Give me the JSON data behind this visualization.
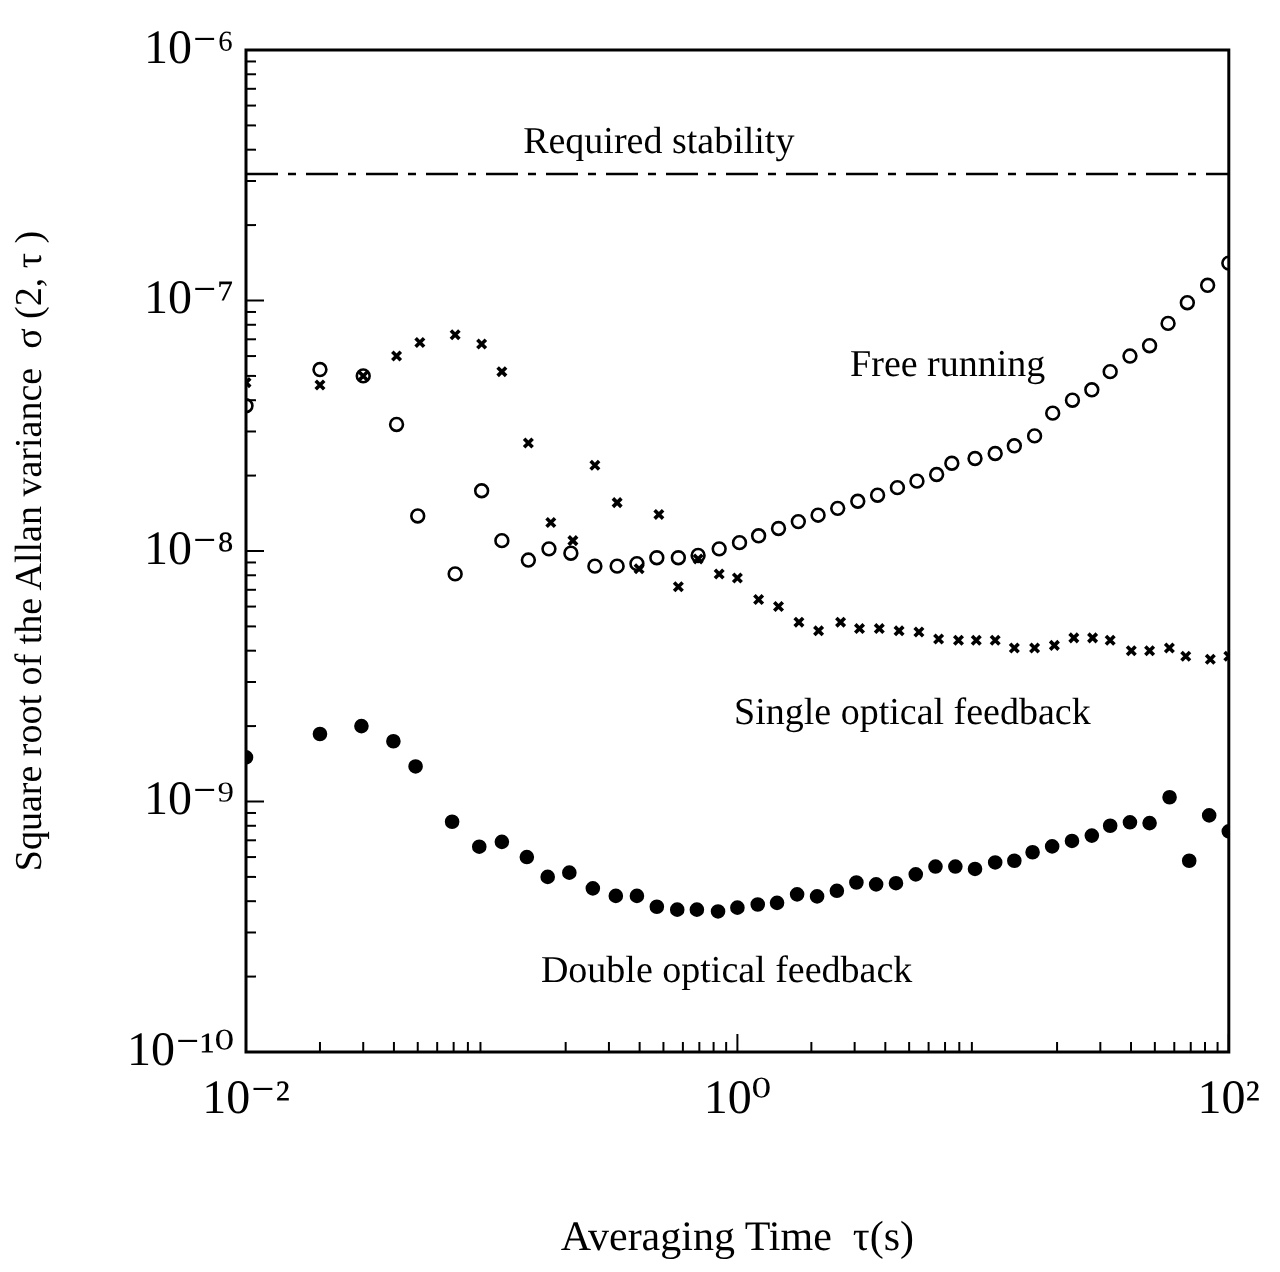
{
  "chart_data": {
    "type": "scatter",
    "xlabel": "Averaging Time  τ(s)",
    "ylabel": "Square root of the Allan variance  σ (2, τ )",
    "log": "xy",
    "legend": false,
    "grid": false,
    "xlim": [
      0.01,
      100
    ],
    "xticks": [
      {
        "value": 0.01,
        "label": "10⁻²"
      },
      {
        "value": 1,
        "label": "10⁰"
      },
      {
        "value": 100,
        "label": "10²"
      }
    ],
    "ylim": [
      1e-10,
      1e-06
    ],
    "yticks": [
      {
        "value": 1e-10,
        "label": "10⁻¹⁰"
      },
      {
        "value": 1e-09,
        "label": "10⁻⁹"
      },
      {
        "value": 1e-08,
        "label": "10⁻⁸"
      },
      {
        "value": 1e-07,
        "label": "10⁻⁷"
      },
      {
        "value": 1e-06,
        "label": "10⁻⁶"
      }
    ],
    "ref_lines": [
      {
        "axis": "y",
        "value": 3.2e-07,
        "label": "Required stability",
        "color": "#000000",
        "line_style": "dashed"
      }
    ],
    "series": [
      {
        "name": "Free running",
        "color": "#000000",
        "marker": "circle",
        "x": [
          0.01,
          0.02,
          0.03,
          0.041,
          0.05,
          0.071,
          0.091,
          0.11,
          0.141,
          0.171,
          0.21,
          0.263,
          0.324,
          0.39,
          0.47,
          0.575,
          0.692,
          0.843,
          1.02,
          1.22,
          1.47,
          1.77,
          2.13,
          2.56,
          3.09,
          3.72,
          4.48,
          5.38,
          6.47,
          7.46,
          9.27,
          11.2,
          13.4,
          16.2,
          19.2,
          23.1,
          27.7,
          32.9,
          39.6,
          47.6,
          56.6,
          67.8,
          82,
          100
        ],
        "values": [
          3.8e-08,
          5.3e-08,
          5e-08,
          3.2e-08,
          1.38e-08,
          8.1e-09,
          1.74e-08,
          1.1e-08,
          9.2e-09,
          1.02e-08,
          9.8e-09,
          8.7e-09,
          8.7e-09,
          8.9e-09,
          9.4e-09,
          9.4e-09,
          9.6e-09,
          1.02e-08,
          1.08e-08,
          1.15e-08,
          1.23e-08,
          1.31e-08,
          1.39e-08,
          1.48e-08,
          1.58e-08,
          1.67e-08,
          1.79e-08,
          1.9e-08,
          2.02e-08,
          2.24e-08,
          2.34e-08,
          2.45e-08,
          2.63e-08,
          2.88e-08,
          3.55e-08,
          4e-08,
          4.4e-08,
          5.2e-08,
          6e-08,
          6.6e-08,
          8.1e-08,
          9.8e-08,
          1.15e-07,
          1.41e-07
        ]
      },
      {
        "name": "Single optical feedback",
        "color": "#000000",
        "marker": "cross",
        "x": [
          0.01,
          0.02,
          0.03,
          0.041,
          0.051,
          0.071,
          0.091,
          0.11,
          0.141,
          0.174,
          0.214,
          0.263,
          0.324,
          0.398,
          0.479,
          0.575,
          0.692,
          0.843,
          1.0,
          1.22,
          1.47,
          1.78,
          2.14,
          2.63,
          3.14,
          3.78,
          4.55,
          5.48,
          6.59,
          7.94,
          9.38,
          11.2,
          13.4,
          16.2,
          19.5,
          23.4,
          27.9,
          32.9,
          40.1,
          47.6,
          57.3,
          66.8,
          84.1,
          100
        ],
        "values": [
          4.7e-08,
          4.6e-08,
          5e-08,
          6e-08,
          6.8e-08,
          7.3e-08,
          6.7e-08,
          5.2e-08,
          2.7e-08,
          1.3e-08,
          1.1e-08,
          2.2e-08,
          1.56e-08,
          8.5e-09,
          1.4e-08,
          7.2e-09,
          9.3e-09,
          8.1e-09,
          7.8e-09,
          6.4e-09,
          6e-09,
          5.2e-09,
          4.8e-09,
          5.2e-09,
          4.9e-09,
          4.9e-09,
          4.8e-09,
          4.75e-09,
          4.45e-09,
          4.4e-09,
          4.4e-09,
          4.4e-09,
          4.1e-09,
          4.1e-09,
          4.2e-09,
          4.5e-09,
          4.5e-09,
          4.4e-09,
          4e-09,
          4e-09,
          4.1e-09,
          3.8e-09,
          3.7e-09,
          3.8e-09
        ]
      },
      {
        "name": "Double optical feedback",
        "color": "#000000",
        "marker": "circle_filled",
        "x": [
          0.01,
          0.02,
          0.0295,
          0.0398,
          0.049,
          0.069,
          0.089,
          0.11,
          0.139,
          0.169,
          0.207,
          0.258,
          0.32,
          0.39,
          0.47,
          0.569,
          0.684,
          0.834,
          1.0,
          1.21,
          1.45,
          1.75,
          2.11,
          2.54,
          3.05,
          3.67,
          4.42,
          5.32,
          6.4,
          7.71,
          9.27,
          11.2,
          13.4,
          15.9,
          19.1,
          23,
          27.7,
          32.9,
          39.6,
          47.6,
          57.4,
          69,
          83.2,
          100
        ],
        "values": [
          1.5e-09,
          1.86e-09,
          2e-09,
          1.74e-09,
          1.38e-09,
          8.3e-10,
          6.6e-10,
          6.9e-10,
          6e-10,
          5e-10,
          5.2e-10,
          4.5e-10,
          4.2e-10,
          4.2e-10,
          3.8e-10,
          3.7e-10,
          3.7e-10,
          3.64e-10,
          3.77e-10,
          3.88e-10,
          3.94e-10,
          4.26e-10,
          4.18e-10,
          4.4e-10,
          4.75e-10,
          4.67e-10,
          4.72e-10,
          5.12e-10,
          5.5e-10,
          5.5e-10,
          5.38e-10,
          5.71e-10,
          5.8e-10,
          6.27e-10,
          6.62e-10,
          6.96e-10,
          7.31e-10,
          8e-10,
          8.26e-10,
          8.2e-10,
          1.04e-09,
          5.8e-10,
          8.8e-10,
          7.6e-10
        ]
      }
    ]
  }
}
